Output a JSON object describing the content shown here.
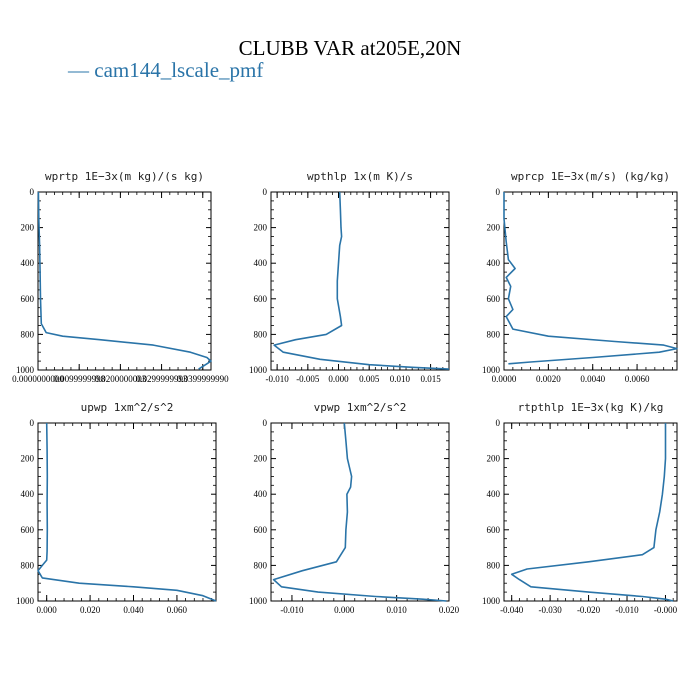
{
  "figure": {
    "title": "CLUBB VAR at205E,20N",
    "legend": [
      {
        "name": "— cam144_lscale_pmf",
        "color": "#2a74a8"
      }
    ]
  },
  "chart_data": [
    {
      "type": "line",
      "title": "wprtp   1E−3x(m kg)/(s kg)",
      "xlim": [
        0,
        0.042
      ],
      "ylim": [
        1000,
        0
      ],
      "line_color": "#2a74a8",
      "xticks": [
        0,
        0.01,
        0.02,
        0.03,
        0.04
      ],
      "xtick_labels": [
        "0.0000000000",
        "0.0099999998",
        "0.0200000003",
        "0.0299999993",
        "0.0399999990"
      ],
      "yticks": [
        0,
        200,
        400,
        600,
        800,
        1000
      ],
      "ytick_labels": [
        "0",
        "200",
        "400",
        "600",
        "800",
        "1000"
      ],
      "x": [
        0.0001,
        0.0002,
        0.0004,
        0.0005,
        0.0006,
        0.0008,
        0.002,
        0.006,
        0.015,
        0.028,
        0.037,
        0.041,
        0.042,
        0.041,
        0.04,
        0.039
      ],
      "y": [
        0,
        150,
        300,
        450,
        600,
        740,
        790,
        810,
        830,
        860,
        900,
        930,
        950,
        965,
        980,
        995
      ]
    },
    {
      "type": "line",
      "title": "wpthlp   1x(m K)/s",
      "xlim": [
        -0.011,
        0.018
      ],
      "ylim": [
        1000,
        0
      ],
      "line_color": "#2a74a8",
      "xticks": [
        -0.01,
        -0.005,
        0,
        0.005,
        0.01,
        0.015
      ],
      "xtick_labels": [
        "-0.010",
        "-0.005",
        "0.000",
        "0.005",
        "0.010",
        "0.015"
      ],
      "yticks": [
        0,
        200,
        400,
        600,
        800,
        1000
      ],
      "ytick_labels": [
        "0",
        "200",
        "400",
        "600",
        "800",
        "1000"
      ],
      "x": [
        0.0002,
        0.0003,
        0.0004,
        0.0005,
        0.0002,
        0.0,
        -0.0002,
        -0.0002,
        0.0003,
        0.0005,
        -0.002,
        -0.007,
        -0.0105,
        -0.009,
        -0.003,
        0.005,
        0.012,
        0.018
      ],
      "y": [
        0,
        100,
        200,
        250,
        300,
        400,
        500,
        600,
        700,
        750,
        800,
        830,
        860,
        900,
        940,
        970,
        985,
        995
      ]
    },
    {
      "type": "line",
      "title": "wprcp   1E−3x(m/s) (kg/kg)",
      "xlim": [
        0,
        0.0078
      ],
      "ylim": [
        1000,
        0
      ],
      "line_color": "#2a74a8",
      "xticks": [
        0,
        0.002,
        0.004,
        0.006
      ],
      "xtick_labels": [
        "0.0000",
        "0.0020",
        "0.0040",
        "0.0060"
      ],
      "yticks": [
        0,
        200,
        400,
        600,
        800,
        1000
      ],
      "ytick_labels": [
        "0",
        "200",
        "400",
        "600",
        "800",
        "1000"
      ],
      "x": [
        0.0,
        0.0,
        0.0001,
        0.0002,
        0.0005,
        0.0001,
        0.0003,
        0.0002,
        0.0004,
        0.0001,
        0.0004,
        0.002,
        0.005,
        0.0072,
        0.0078,
        0.007,
        0.004,
        0.0012,
        0.0002
      ],
      "y": [
        0,
        150,
        280,
        380,
        430,
        480,
        530,
        600,
        660,
        700,
        770,
        810,
        840,
        860,
        880,
        900,
        930,
        955,
        965
      ]
    },
    {
      "type": "line",
      "title": "upwp   1xm^2/s^2",
      "xlim": [
        -0.004,
        0.078
      ],
      "ylim": [
        1000,
        0
      ],
      "line_color": "#2a74a8",
      "xticks": [
        0,
        0.02,
        0.04,
        0.06
      ],
      "xtick_labels": [
        "0.000",
        "0.020",
        "0.040",
        "0.060"
      ],
      "yticks": [
        0,
        200,
        400,
        600,
        800,
        1000
      ],
      "ytick_labels": [
        "0",
        "200",
        "400",
        "600",
        "800",
        "1000"
      ],
      "x": [
        0.0,
        0.0002,
        0.0003,
        0.0002,
        0.0003,
        0.0002,
        0.0,
        -0.002,
        -0.004,
        -0.002,
        0.015,
        0.04,
        0.06,
        0.072,
        0.078
      ],
      "y": [
        0,
        150,
        300,
        450,
        600,
        720,
        770,
        800,
        830,
        870,
        900,
        920,
        940,
        970,
        1000
      ]
    },
    {
      "type": "line",
      "title": "vpwp   1xm^2/s^2",
      "xlim": [
        -0.014,
        0.02
      ],
      "ylim": [
        1000,
        0
      ],
      "line_color": "#2a74a8",
      "xticks": [
        -0.01,
        0,
        0.01,
        0.02
      ],
      "xtick_labels": [
        "-0.010",
        "0.000",
        "0.010",
        "0.020"
      ],
      "yticks": [
        0,
        200,
        400,
        600,
        800,
        1000
      ],
      "ytick_labels": [
        "0",
        "200",
        "400",
        "600",
        "800",
        "1000"
      ],
      "x": [
        0.0,
        0.0003,
        0.0006,
        0.001,
        0.0014,
        0.0012,
        0.0005,
        0.0006,
        0.0003,
        0.0002,
        -0.0015,
        -0.008,
        -0.0135,
        -0.012,
        -0.005,
        0.006,
        0.015,
        0.0195
      ],
      "y": [
        0,
        100,
        200,
        250,
        300,
        360,
        400,
        500,
        600,
        700,
        780,
        830,
        880,
        920,
        950,
        975,
        990,
        1000
      ]
    },
    {
      "type": "line",
      "title": "rtpthlp   1E−3x(kg K)/kg",
      "xlim": [
        -0.042,
        0.003
      ],
      "ylim": [
        1000,
        0
      ],
      "line_color": "#2a74a8",
      "xticks": [
        -0.04,
        -0.03,
        -0.02,
        -0.01,
        0
      ],
      "xtick_labels": [
        "-0.040",
        "-0.030",
        "-0.020",
        "-0.010",
        "-0.000"
      ],
      "yticks": [
        0,
        200,
        400,
        600,
        800,
        1000
      ],
      "ytick_labels": [
        "0",
        "200",
        "400",
        "600",
        "800",
        "1000"
      ],
      "x": [
        0.0,
        0.0,
        -0.0003,
        -0.0008,
        -0.0015,
        -0.0025,
        -0.003,
        -0.006,
        -0.02,
        -0.036,
        -0.04,
        -0.038,
        -0.035,
        -0.02,
        -0.006,
        0.0,
        0.002
      ],
      "y": [
        0,
        200,
        300,
        400,
        500,
        600,
        700,
        740,
        780,
        820,
        850,
        880,
        920,
        950,
        975,
        990,
        1000
      ]
    }
  ]
}
